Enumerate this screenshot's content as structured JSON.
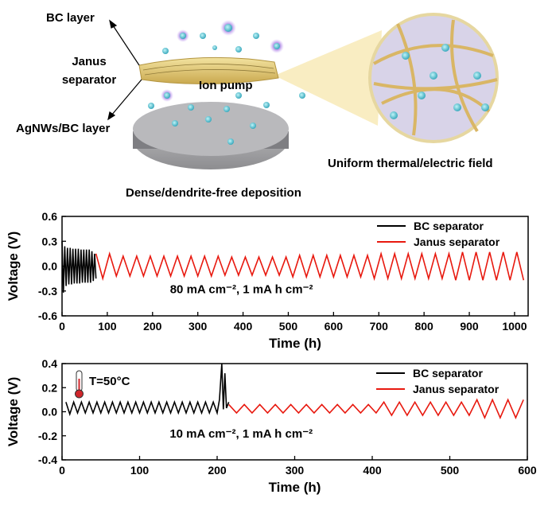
{
  "illustration": {
    "labels": {
      "bc_layer": "BC layer",
      "janus_1": "Janus",
      "janus_2": "separator",
      "ion_pump": "Ion pump",
      "agnws_layer": "AgNWs/BC layer",
      "field": "Uniform thermal/electric field",
      "deposition": "Dense/dendrite-free deposition"
    }
  },
  "chart_data": [
    {
      "type": "line",
      "xlabel": "Time (h)",
      "ylabel": "Voltage (V)",
      "annotation": "80 mA cm⁻², 1 mA h cm⁻²",
      "xlim": [
        0,
        1030
      ],
      "xticks": [
        0,
        100,
        200,
        300,
        400,
        500,
        600,
        700,
        800,
        900,
        1000
      ],
      "ylim": [
        -0.6,
        0.6
      ],
      "yticks": [
        -0.6,
        -0.3,
        {
          "value": 0,
          "label": "0.0"
        },
        0.3,
        0.6
      ],
      "legend": "upper right",
      "series": [
        {
          "name": "BC separator",
          "color": "#000000",
          "x": [
            0,
            3,
            6,
            9,
            12,
            15,
            18,
            21,
            24,
            27,
            30,
            33,
            36,
            39,
            42,
            45,
            48,
            51,
            54,
            57,
            60,
            63,
            66,
            69,
            72,
            75
          ],
          "values": [
            0.3,
            -0.32,
            0.24,
            -0.24,
            0.22,
            -0.22,
            0.22,
            -0.22,
            0.21,
            -0.21,
            0.21,
            -0.21,
            0.21,
            -0.21,
            0.2,
            -0.2,
            0.2,
            -0.2,
            0.2,
            -0.2,
            0.2,
            -0.2,
            0.18,
            -0.18,
            0.15,
            -0.15
          ]
        },
        {
          "name": "Janus separator",
          "color": "#e8190f",
          "x": [
            75,
            90,
            105,
            120,
            135,
            150,
            165,
            180,
            195,
            210,
            225,
            240,
            255,
            270,
            285,
            300,
            315,
            330,
            345,
            360,
            375,
            390,
            405,
            420,
            435,
            450,
            465,
            480,
            495,
            510,
            525,
            540,
            555,
            570,
            585,
            600,
            615,
            630,
            645,
            660,
            675,
            690,
            705,
            720,
            735,
            750,
            765,
            780,
            795,
            810,
            825,
            840,
            855,
            870,
            885,
            900,
            915,
            930,
            945,
            960,
            975,
            990,
            1005,
            1020
          ],
          "values": [
            0.15,
            -0.15,
            0.15,
            -0.12,
            0.12,
            -0.12,
            0.12,
            -0.12,
            0.12,
            -0.12,
            0.12,
            -0.12,
            0.12,
            -0.12,
            0.12,
            -0.12,
            0.12,
            -0.12,
            0.12,
            -0.11,
            0.11,
            -0.11,
            0.11,
            -0.11,
            0.11,
            -0.11,
            0.11,
            -0.11,
            0.11,
            -0.13,
            0.13,
            -0.13,
            0.13,
            -0.13,
            0.13,
            -0.13,
            0.13,
            -0.13,
            0.13,
            -0.13,
            0.13,
            -0.15,
            0.15,
            -0.15,
            0.15,
            -0.15,
            0.15,
            -0.15,
            0.15,
            -0.15,
            0.15,
            -0.15,
            0.15,
            -0.17,
            0.17,
            -0.17,
            0.17,
            -0.17,
            0.17,
            -0.17,
            0.17,
            -0.17,
            0.17,
            -0.17
          ]
        }
      ]
    },
    {
      "type": "line",
      "xlabel": "Time (h)",
      "ylabel": "Voltage (V)",
      "annotation": "10 mA cm⁻², 1 mA h cm⁻²",
      "temperature": "T=50°C",
      "xlim": [
        0,
        600
      ],
      "xticks": [
        0,
        100,
        200,
        300,
        400,
        500,
        600
      ],
      "ylim": [
        -0.4,
        0.4
      ],
      "yticks": [
        -0.4,
        -0.2,
        {
          "value": 0,
          "label": "0.0"
        },
        0.2,
        0.4
      ],
      "legend": "upper right",
      "series": [
        {
          "name": "BC separator",
          "color": "#000000",
          "x": [
            5,
            10,
            15,
            20,
            25,
            30,
            35,
            40,
            45,
            50,
            55,
            60,
            65,
            70,
            75,
            80,
            85,
            90,
            95,
            100,
            105,
            110,
            115,
            120,
            125,
            130,
            135,
            140,
            145,
            150,
            155,
            160,
            165,
            170,
            175,
            180,
            185,
            190,
            195,
            200,
            203,
            206,
            208,
            210,
            212,
            215
          ],
          "values": [
            0.08,
            -0.02,
            0.08,
            -0.01,
            0.08,
            -0.01,
            0.08,
            -0.01,
            0.08,
            -0.01,
            0.08,
            -0.01,
            0.08,
            -0.01,
            0.08,
            -0.01,
            0.08,
            -0.01,
            0.08,
            -0.01,
            0.08,
            -0.01,
            0.08,
            -0.01,
            0.08,
            -0.01,
            0.08,
            -0.01,
            0.08,
            -0.01,
            0.08,
            -0.01,
            0.08,
            -0.01,
            0.08,
            -0.01,
            0.08,
            -0.01,
            0.08,
            -0.01,
            0.1,
            0.4,
            0.02,
            0.32,
            0.03,
            0.08
          ]
        },
        {
          "name": "Janus separator",
          "color": "#e8190f",
          "x": [
            215,
            225,
            235,
            245,
            255,
            265,
            275,
            285,
            295,
            305,
            315,
            325,
            335,
            345,
            355,
            365,
            375,
            385,
            395,
            405,
            415,
            425,
            435,
            445,
            455,
            465,
            475,
            485,
            495,
            505,
            515,
            525,
            535,
            545,
            555,
            565,
            575,
            585,
            595
          ],
          "values": [
            0.06,
            -0.01,
            0.06,
            -0.01,
            0.06,
            -0.01,
            0.06,
            -0.01,
            0.06,
            -0.01,
            0.06,
            -0.01,
            0.06,
            -0.01,
            0.06,
            -0.01,
            0.06,
            -0.01,
            0.06,
            -0.01,
            0.08,
            -0.03,
            0.08,
            -0.03,
            0.08,
            -0.03,
            0.08,
            -0.03,
            0.08,
            -0.03,
            0.08,
            -0.03,
            0.1,
            -0.05,
            0.1,
            -0.05,
            0.1,
            -0.05,
            0.1
          ]
        }
      ]
    }
  ]
}
